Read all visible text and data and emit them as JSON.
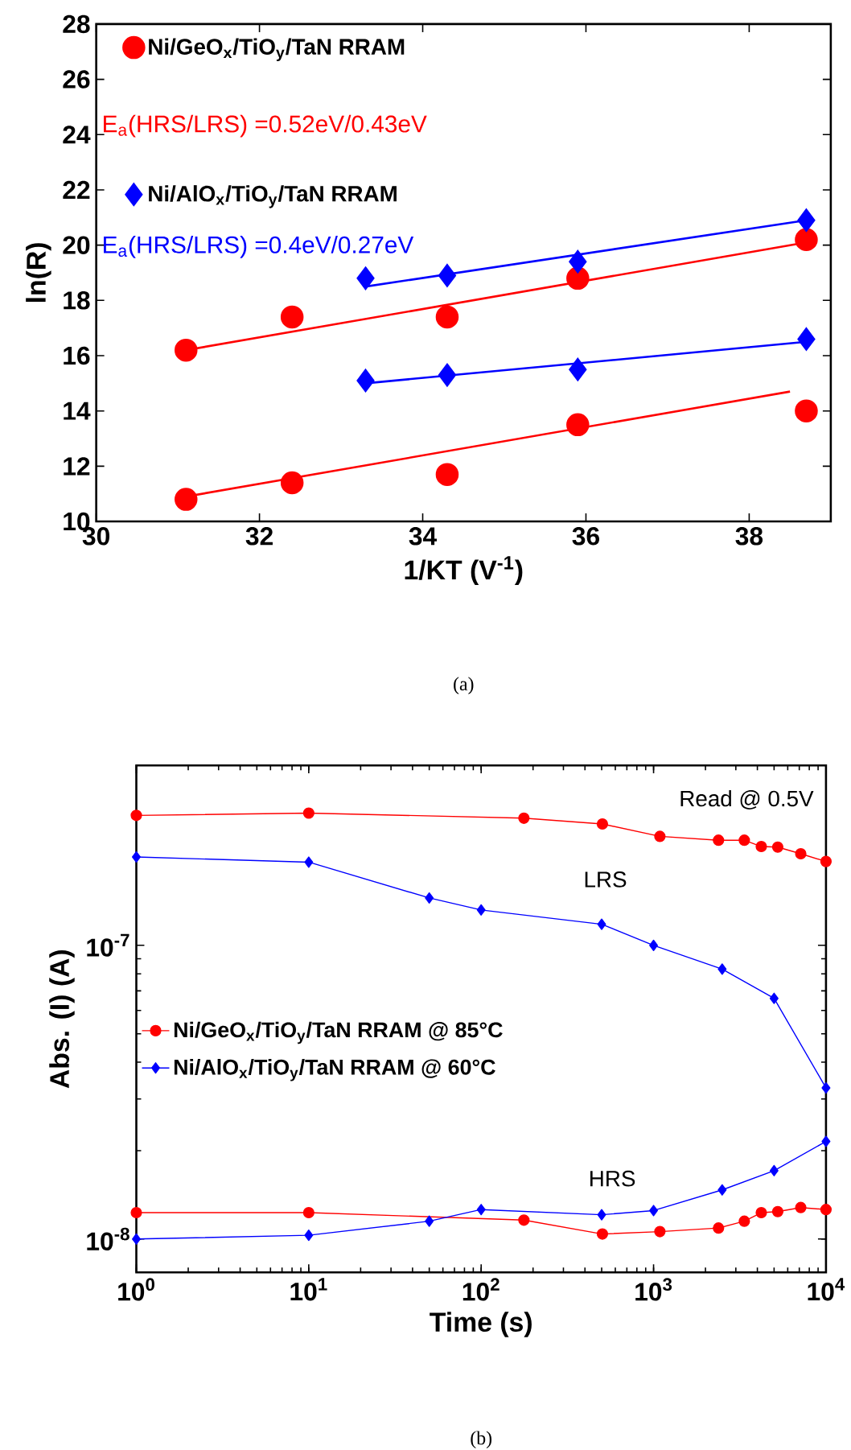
{
  "chart_data": [
    {
      "type": "scatter",
      "xlabel": "1/KT (V$^{-1}$)",
      "ylabel": "ln(R)",
      "xlim": [
        30,
        39
      ],
      "ylim": [
        10,
        28
      ],
      "xticks": [
        30,
        32,
        34,
        36,
        38
      ],
      "yticks": [
        10,
        12,
        14,
        16,
        18,
        20,
        22,
        24,
        26,
        28
      ],
      "legend": "top left",
      "annotations": [
        "E$_{a}$(HRS/LRS) =0.52eV/0.43eV",
        "E$_{a}$(HRS/LRS) =0.4eV/0.27eV",
        "(a)"
      ],
      "series": [
        {
          "name": "Ni/GeO$_{x}$/TiO$_{y}$/TaN RRAM",
          "color": "#ff0000",
          "marker": "circle",
          "x": [
            31.1,
            32.4,
            34.3,
            35.9,
            38.7
          ],
          "values": [
            16.2,
            17.4,
            17.4,
            18.8,
            20.2
          ]
        },
        {
          "name": "Ni/AlO$_{x}$/TiO$_{y}$/TaN RRAM",
          "color": "#0000ff",
          "marker": "diamond",
          "x": [
            33.3,
            34.3,
            35.9,
            38.7
          ],
          "values": [
            18.8,
            18.9,
            19.4,
            20.9
          ]
        },
        {
          "color": "#ff0000",
          "marker": "circle",
          "x": [
            31.1,
            32.4,
            34.3,
            35.9,
            38.7
          ],
          "values": [
            10.8,
            11.4,
            11.7,
            13.5,
            14.0
          ]
        },
        {
          "color": "#0000ff",
          "marker": "diamond",
          "x": [
            33.3,
            34.3,
            35.9,
            38.7
          ],
          "values": [
            15.1,
            15.3,
            15.5,
            16.6
          ]
        },
        {
          "type": "line",
          "color": "#ff0000",
          "x": [
            31.1,
            38.7
          ],
          "values": [
            16.2,
            20.1
          ]
        },
        {
          "type": "line",
          "color": "#ff0000",
          "x": [
            31.1,
            38.5
          ],
          "values": [
            10.9,
            14.7
          ]
        },
        {
          "type": "line",
          "color": "#0000ff",
          "x": [
            33.3,
            38.7
          ],
          "values": [
            18.5,
            20.9
          ]
        },
        {
          "type": "line",
          "color": "#0000ff",
          "x": [
            33.3,
            38.7
          ],
          "values": [
            15.0,
            16.5
          ]
        }
      ]
    },
    {
      "type": "line",
      "xlabel": "Time (s)",
      "ylabel": "Abs. (I) (A)",
      "log": "xy",
      "xlim": [
        1,
        10000
      ],
      "ylim": [
        7.7e-09,
        4.1e-07
      ],
      "xticks": [
        {
          "value": 1,
          "label": "10$^{0}$"
        },
        {
          "value": 10,
          "label": "10$^{1}$"
        },
        {
          "value": 100,
          "label": "10$^{2}$"
        },
        {
          "value": 1000,
          "label": "10$^{3}$"
        },
        {
          "value": 10000,
          "label": "10$^{4}$"
        }
      ],
      "yticks": [
        {
          "value": 1e-08,
          "label": "10$^{-8}$"
        },
        {
          "value": 1e-07,
          "label": "10$^{-7}$"
        }
      ],
      "legend": "left",
      "annotations": [
        "Read @ 0.5V",
        "LRS",
        "HRS",
        "(b)"
      ],
      "series": [
        {
          "name": "Ni/GeO$_{x}$/TiO$_{y}$/TaN RRAM @ 85°C",
          "color": "#ff0000",
          "marker": "circle",
          "x": [
            1,
            10,
            177,
            505,
            1088,
            2380,
            3360,
            4215,
            5250,
            7140,
            10000
          ],
          "values": [
            2.77e-07,
            2.82e-07,
            2.71e-07,
            2.59e-07,
            2.35e-07,
            2.28e-07,
            2.28e-07,
            2.17e-07,
            2.16e-07,
            2.05e-07,
            1.93e-07
          ]
        },
        {
          "name": "Ni/AlO$_{x}$/TiO$_{y}$/TaN RRAM @ 60°C",
          "color": "#0000ff",
          "marker": "diamond",
          "x": [
            1,
            10,
            50,
            100,
            500,
            1000,
            2500,
            5000,
            10000
          ],
          "values": [
            2e-07,
            1.92e-07,
            1.45e-07,
            1.32e-07,
            1.18e-07,
            1e-07,
            8.3e-08,
            6.6e-08,
            3.27e-08
          ]
        },
        {
          "color": "#ff0000",
          "marker": "circle",
          "x": [
            1,
            10,
            177,
            505,
            1088,
            2380,
            3360,
            4215,
            5250,
            7140,
            10000
          ],
          "values": [
            1.23e-08,
            1.23e-08,
            1.16e-08,
            1.04e-08,
            1.06e-08,
            1.09e-08,
            1.15e-08,
            1.23e-08,
            1.24e-08,
            1.28e-08,
            1.26e-08
          ]
        },
        {
          "color": "#0000ff",
          "marker": "diamond",
          "x": [
            1,
            10,
            50,
            100,
            500,
            1000,
            2500,
            5000,
            10000
          ],
          "values": [
            1e-08,
            1.03e-08,
            1.15e-08,
            1.26e-08,
            1.21e-08,
            1.25e-08,
            1.47e-08,
            1.71e-08,
            2.15e-08
          ]
        }
      ]
    }
  ]
}
